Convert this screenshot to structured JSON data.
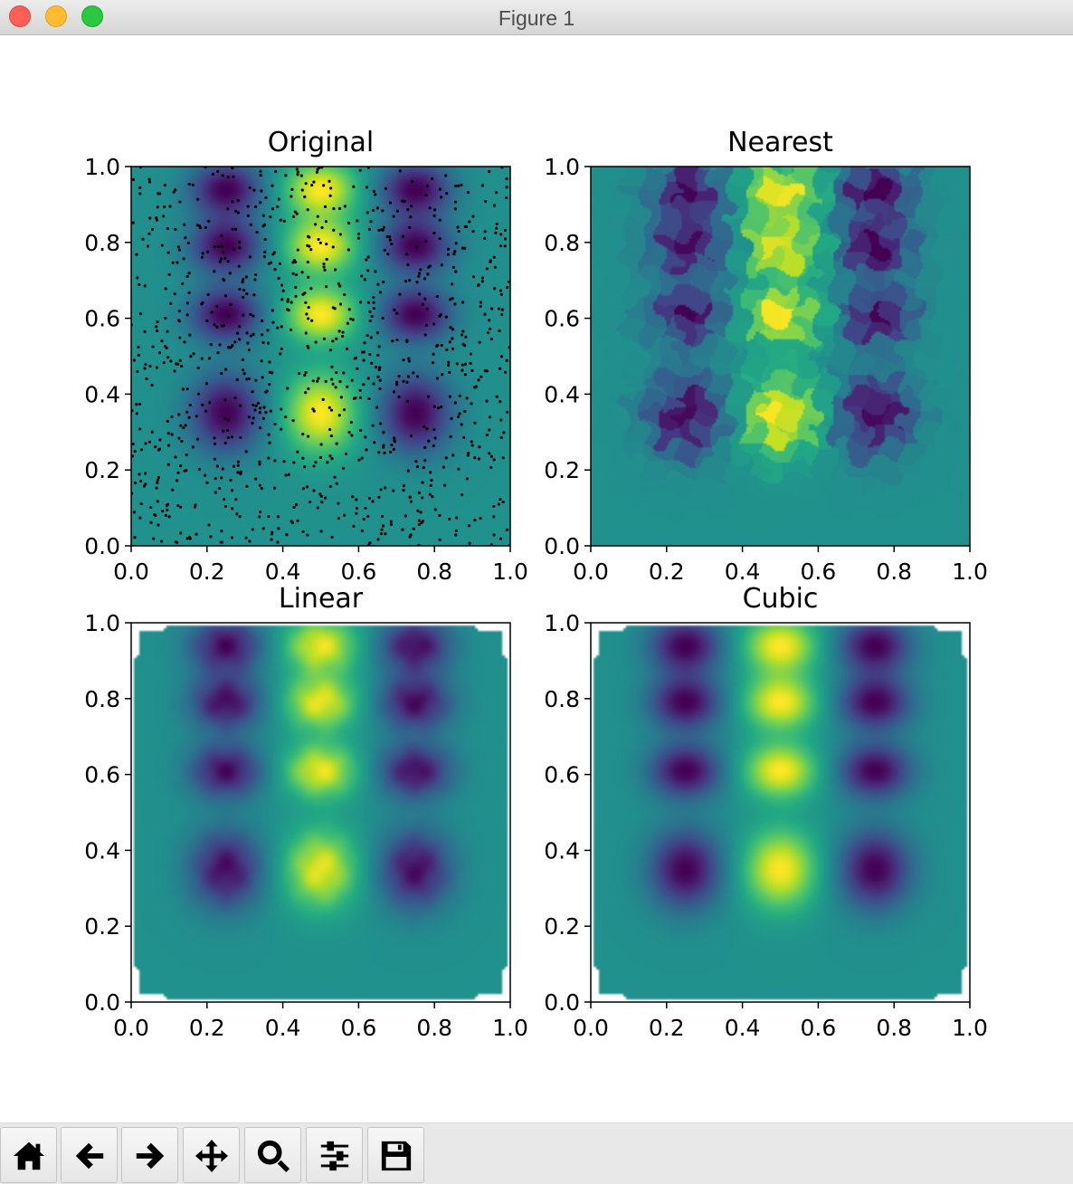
{
  "window": {
    "title": "Figure 1"
  },
  "toolbar": {
    "buttons": [
      {
        "name": "home-button",
        "icon": "home-icon"
      },
      {
        "name": "back-button",
        "icon": "left-arrow-icon"
      },
      {
        "name": "forward-button",
        "icon": "right-arrow-icon"
      },
      {
        "name": "pan-button",
        "icon": "move-icon"
      },
      {
        "name": "zoom-button",
        "icon": "magnifier-icon"
      },
      {
        "name": "configure-subplots-button",
        "icon": "sliders-icon"
      },
      {
        "name": "save-button",
        "icon": "floppy-disk-icon"
      }
    ]
  },
  "chart_data": [
    {
      "type": "heatmap",
      "title": "Original",
      "method": "original",
      "xlim": [
        0.0,
        1.0
      ],
      "ylim": [
        0.0,
        1.0
      ],
      "xticks": [
        "0.0",
        "0.2",
        "0.4",
        "0.6",
        "0.8",
        "1.0"
      ],
      "yticks": [
        "0.0",
        "0.2",
        "0.4",
        "0.6",
        "0.8",
        "1.0"
      ],
      "colormap": "viridis",
      "scatter_overlay": {
        "marker_color": "#000000",
        "count": 1000,
        "distribution": "uniform random sample points in [0,1]x[0,1]"
      },
      "blobs": [
        {
          "x": 0.25,
          "y": 0.94,
          "sign": -1
        },
        {
          "x": 0.5,
          "y": 0.94,
          "sign": 1
        },
        {
          "x": 0.75,
          "y": 0.94,
          "sign": -1
        },
        {
          "x": 0.25,
          "y": 0.79,
          "sign": -1
        },
        {
          "x": 0.5,
          "y": 0.79,
          "sign": 1
        },
        {
          "x": 0.75,
          "y": 0.79,
          "sign": -1
        },
        {
          "x": 0.25,
          "y": 0.61,
          "sign": -1
        },
        {
          "x": 0.5,
          "y": 0.61,
          "sign": 1
        },
        {
          "x": 0.75,
          "y": 0.61,
          "sign": -1
        },
        {
          "x": 0.25,
          "y": 0.35,
          "sign": -1
        },
        {
          "x": 0.5,
          "y": 0.35,
          "sign": 1
        },
        {
          "x": 0.75,
          "y": 0.35,
          "sign": -1
        }
      ]
    },
    {
      "type": "heatmap",
      "title": "Nearest",
      "method": "nearest",
      "xlim": [
        0.0,
        1.0
      ],
      "ylim": [
        0.0,
        1.0
      ],
      "xticks": [
        "0.0",
        "0.2",
        "0.4",
        "0.6",
        "0.8",
        "1.0"
      ],
      "yticks": [
        "0.0",
        "0.2",
        "0.4",
        "0.6",
        "0.8",
        "1.0"
      ],
      "colormap": "viridis"
    },
    {
      "type": "heatmap",
      "title": "Linear",
      "method": "linear",
      "xlim": [
        0.0,
        1.0
      ],
      "ylim": [
        0.0,
        1.0
      ],
      "xticks": [
        "0.0",
        "0.2",
        "0.4",
        "0.6",
        "0.8",
        "1.0"
      ],
      "yticks": [
        "0.0",
        "0.2",
        "0.4",
        "0.6",
        "0.8",
        "1.0"
      ],
      "colormap": "viridis",
      "convex_hull_only": true
    },
    {
      "type": "heatmap",
      "title": "Cubic",
      "method": "cubic",
      "xlim": [
        0.0,
        1.0
      ],
      "ylim": [
        0.0,
        1.0
      ],
      "xticks": [
        "0.0",
        "0.2",
        "0.4",
        "0.6",
        "0.8",
        "1.0"
      ],
      "yticks": [
        "0.0",
        "0.2",
        "0.4",
        "0.6",
        "0.8",
        "1.0"
      ],
      "colormap": "viridis",
      "convex_hull_only": true
    }
  ]
}
